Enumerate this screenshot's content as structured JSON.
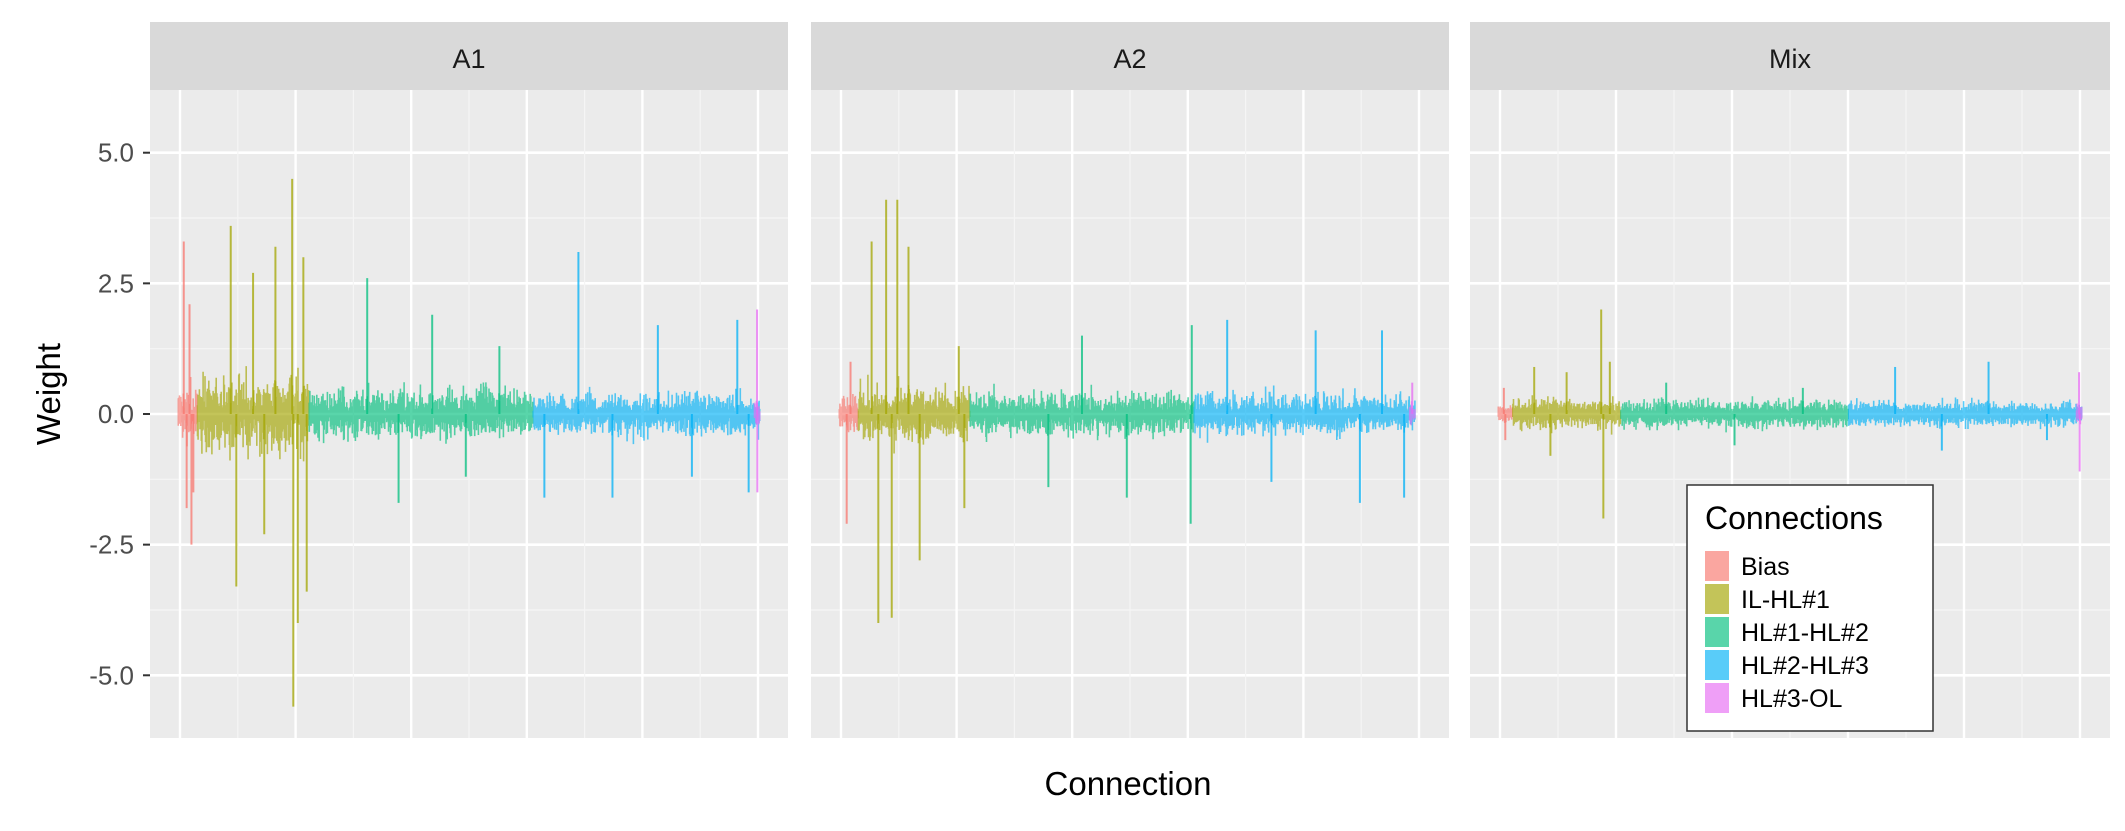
{
  "chart_data": {
    "type": "line",
    "facets": [
      "A1",
      "A2",
      "Mix"
    ],
    "xlabel": "Connection",
    "ylabel": "Weight",
    "ylim": [
      -6.2,
      6.2
    ],
    "yticks": [
      -5.0,
      -2.5,
      0.0,
      2.5,
      5.0
    ],
    "ytick_labels": [
      "-5.0",
      "-2.5",
      "0.0",
      "2.5",
      "5.0"
    ],
    "grid": true,
    "legend": {
      "title": "Connections",
      "placement": "inside bottom-right of Mix panel",
      "entries": [
        "Bias",
        "IL-HL#1",
        "HL#1-HL#2",
        "HL#2-HL#3",
        "HL#3-OL"
      ]
    },
    "series": [
      {
        "name": "Bias",
        "color": "#F8766D"
      },
      {
        "name": "IL-HL#1",
        "color": "#A3A500"
      },
      {
        "name": "HL#1-HL#2",
        "color": "#00BF7D"
      },
      {
        "name": "HL#2-HL#3",
        "color": "#00B0F6"
      },
      {
        "name": "HL#3-OL",
        "color": "#E76BF3"
      }
    ],
    "panels": [
      {
        "facet": "A1",
        "segments": [
          {
            "series": "Bias",
            "x": [
              0.0,
              0.033
            ],
            "base": 0.9,
            "spikes": [
              [
                0.3,
                3.3
              ],
              [
                0.45,
                -1.8
              ],
              [
                0.6,
                2.1
              ],
              [
                0.7,
                -2.5
              ],
              [
                0.8,
                -1.5
              ]
            ]
          },
          {
            "series": "IL-HL#1",
            "x": [
              0.033,
              0.225
            ],
            "base": 1.2,
            "spikes": [
              [
                0.3,
                3.6
              ],
              [
                0.35,
                -3.3
              ],
              [
                0.5,
                2.7
              ],
              [
                0.6,
                -2.3
              ],
              [
                0.7,
                3.2
              ],
              [
                0.85,
                4.5
              ],
              [
                0.86,
                -5.6
              ],
              [
                0.9,
                -4.0
              ],
              [
                0.95,
                3.0
              ],
              [
                0.98,
                -3.4
              ]
            ]
          },
          {
            "series": "HL#1-HL#2",
            "x": [
              0.225,
              0.61
            ],
            "base": 0.8,
            "spikes": [
              [
                0.26,
                2.6
              ],
              [
                0.4,
                -1.7
              ],
              [
                0.55,
                1.9
              ],
              [
                0.7,
                -1.2
              ],
              [
                0.85,
                1.3
              ]
            ]
          },
          {
            "series": "HL#2-HL#3",
            "x": [
              0.61,
              1.0
            ],
            "base": 0.65,
            "spikes": [
              [
                0.2,
                3.1
              ],
              [
                0.05,
                -1.6
              ],
              [
                0.35,
                -1.6
              ],
              [
                0.55,
                1.7
              ],
              [
                0.7,
                -1.2
              ],
              [
                0.9,
                1.8
              ],
              [
                0.95,
                -1.5
              ]
            ]
          },
          {
            "series": "HL#3-OL",
            "x": [
              0.99,
              1.0
            ],
            "base": 0.4,
            "spikes": [
              [
                0.5,
                2.0
              ],
              [
                0.55,
                -1.5
              ]
            ]
          }
        ]
      },
      {
        "facet": "A2",
        "segments": [
          {
            "series": "Bias",
            "x": [
              0.0,
              0.033
            ],
            "base": 0.55,
            "spikes": [
              [
                0.4,
                -2.1
              ],
              [
                0.6,
                1.0
              ]
            ]
          },
          {
            "series": "IL-HL#1",
            "x": [
              0.033,
              0.225
            ],
            "base": 0.9,
            "spikes": [
              [
                0.12,
                3.3
              ],
              [
                0.18,
                -4.0
              ],
              [
                0.25,
                4.1
              ],
              [
                0.3,
                -3.9
              ],
              [
                0.35,
                4.1
              ],
              [
                0.45,
                3.2
              ],
              [
                0.55,
                -2.8
              ],
              [
                0.9,
                1.3
              ],
              [
                0.95,
                -1.8
              ]
            ]
          },
          {
            "series": "HL#1-HL#2",
            "x": [
              0.225,
              0.61
            ],
            "base": 0.7,
            "spikes": [
              [
                0.35,
                -1.4
              ],
              [
                0.5,
                1.5
              ],
              [
                0.7,
                -1.6
              ],
              [
                0.99,
                1.7
              ],
              [
                0.985,
                -2.1
              ]
            ]
          },
          {
            "series": "HL#2-HL#3",
            "x": [
              0.61,
              0.99
            ],
            "base": 0.6,
            "spikes": [
              [
                0.15,
                1.8
              ],
              [
                0.35,
                -1.3
              ],
              [
                0.55,
                1.6
              ],
              [
                0.75,
                -1.7
              ],
              [
                0.85,
                1.6
              ],
              [
                0.95,
                -1.6
              ]
            ]
          },
          {
            "series": "HL#3-OL",
            "x": [
              0.98,
              0.99
            ],
            "base": 0.4,
            "spikes": [
              [
                0.5,
                0.6
              ]
            ]
          }
        ]
      },
      {
        "facet": "Mix",
        "segments": [
          {
            "series": "Bias",
            "x": [
              0.0,
              0.025
            ],
            "base": 0.25,
            "spikes": [
              [
                0.4,
                0.5
              ],
              [
                0.5,
                -0.5
              ]
            ]
          },
          {
            "series": "IL-HL#1",
            "x": [
              0.025,
              0.21
            ],
            "base": 0.45,
            "spikes": [
              [
                0.2,
                0.9
              ],
              [
                0.35,
                -0.8
              ],
              [
                0.5,
                0.8
              ],
              [
                0.82,
                2.0
              ],
              [
                0.84,
                -2.0
              ],
              [
                0.9,
                1.0
              ]
            ]
          },
          {
            "series": "HL#1-HL#2",
            "x": [
              0.21,
              0.6
            ],
            "base": 0.4,
            "spikes": [
              [
                0.2,
                0.6
              ],
              [
                0.5,
                -0.6
              ],
              [
                0.8,
                0.5
              ]
            ]
          },
          {
            "series": "HL#2-HL#3",
            "x": [
              0.6,
              1.0
            ],
            "base": 0.35,
            "spikes": [
              [
                0.2,
                0.9
              ],
              [
                0.4,
                -0.7
              ],
              [
                0.6,
                1.0
              ],
              [
                0.85,
                -0.5
              ]
            ]
          },
          {
            "series": "HL#3-OL",
            "x": [
              0.99,
              1.0
            ],
            "base": 0.3,
            "spikes": [
              [
                0.5,
                0.8
              ],
              [
                0.6,
                -1.1
              ]
            ]
          }
        ]
      }
    ]
  }
}
